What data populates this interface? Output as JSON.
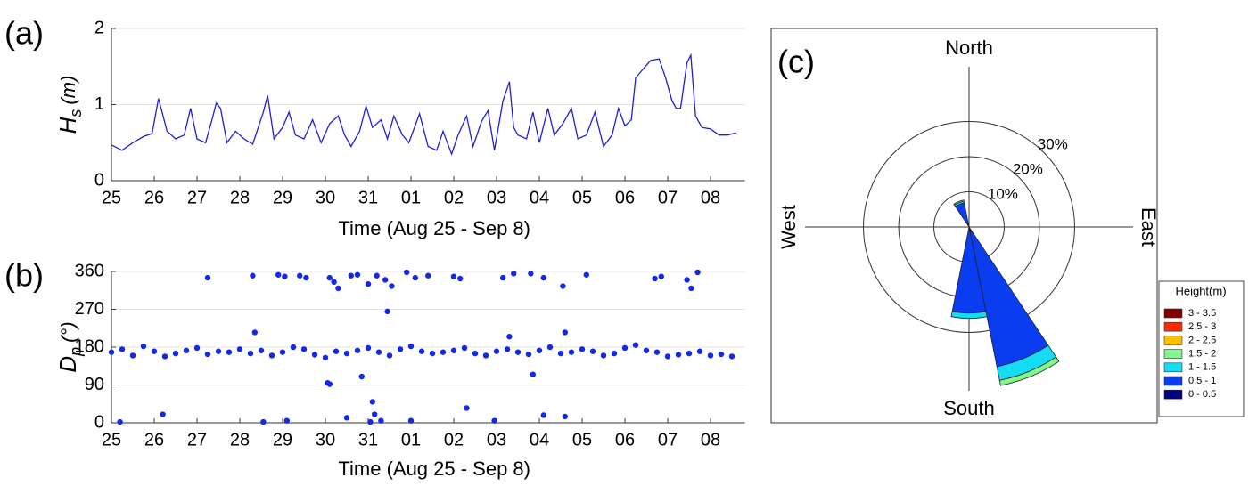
{
  "chart_data": [
    {
      "type": "line",
      "panel_label": "(a)",
      "xlabel": "Time (Aug 25 - Sep 8)",
      "ylabel": {
        "symbol": "H",
        "subscript": "s",
        "unit": "(m)"
      },
      "color": "#1f1fd6",
      "grid": true,
      "xlim": [
        0,
        14.8
      ],
      "ylim": [
        0,
        2
      ],
      "xticks": [
        {
          "value": 0,
          "label": "25"
        },
        {
          "value": 1,
          "label": "26"
        },
        {
          "value": 2,
          "label": "27"
        },
        {
          "value": 3,
          "label": "28"
        },
        {
          "value": 4,
          "label": "29"
        },
        {
          "value": 5,
          "label": "30"
        },
        {
          "value": 6,
          "label": "31"
        },
        {
          "value": 7,
          "label": "01"
        },
        {
          "value": 8,
          "label": "02"
        },
        {
          "value": 9,
          "label": "03"
        },
        {
          "value": 10,
          "label": "04"
        },
        {
          "value": 11,
          "label": "05"
        },
        {
          "value": 12,
          "label": "06"
        },
        {
          "value": 13,
          "label": "07"
        },
        {
          "value": 14,
          "label": "08"
        }
      ],
      "yticks": [
        0,
        1,
        2
      ],
      "x": [
        0,
        0.25,
        0.5,
        0.75,
        0.95,
        1.1,
        1.3,
        1.5,
        1.7,
        1.85,
        2.0,
        2.2,
        2.35,
        2.45,
        2.55,
        2.7,
        2.9,
        3.1,
        3.3,
        3.55,
        3.65,
        3.8,
        4.0,
        4.15,
        4.3,
        4.5,
        4.7,
        4.9,
        5.1,
        5.3,
        5.45,
        5.6,
        5.8,
        5.95,
        6.1,
        6.3,
        6.45,
        6.6,
        6.8,
        6.95,
        7.2,
        7.4,
        7.6,
        7.75,
        7.95,
        8.1,
        8.3,
        8.45,
        8.65,
        8.8,
        8.95,
        9.15,
        9.3,
        9.4,
        9.5,
        9.7,
        9.85,
        10.0,
        10.2,
        10.35,
        10.55,
        10.75,
        10.9,
        11.1,
        11.3,
        11.5,
        11.7,
        11.85,
        12.0,
        12.15,
        12.25,
        12.4,
        12.6,
        12.8,
        12.95,
        13.1,
        13.2,
        13.3,
        13.45,
        13.54,
        13.65,
        13.8,
        14.0,
        14.2,
        14.4,
        14.6
      ],
      "values": [
        0.47,
        0.4,
        0.5,
        0.58,
        0.62,
        1.08,
        0.65,
        0.55,
        0.6,
        0.95,
        0.55,
        0.5,
        0.8,
        1.02,
        0.95,
        0.5,
        0.65,
        0.55,
        0.48,
        0.9,
        1.12,
        0.55,
        0.7,
        0.9,
        0.6,
        0.55,
        0.8,
        0.5,
        0.75,
        0.85,
        0.6,
        0.45,
        0.65,
        0.98,
        0.7,
        0.8,
        0.55,
        0.85,
        0.6,
        0.5,
        0.88,
        0.45,
        0.4,
        0.65,
        0.35,
        0.6,
        0.85,
        0.45,
        0.78,
        0.92,
        0.4,
        1.05,
        1.3,
        0.7,
        0.6,
        0.55,
        0.9,
        0.5,
        0.95,
        0.6,
        0.75,
        0.95,
        0.55,
        0.6,
        0.9,
        0.45,
        0.6,
        0.95,
        0.72,
        0.8,
        1.35,
        1.45,
        1.58,
        1.6,
        1.35,
        1.05,
        0.95,
        0.95,
        1.55,
        1.65,
        0.85,
        0.7,
        0.68,
        0.6,
        0.6,
        0.63
      ]
    },
    {
      "type": "scatter",
      "panel_label": "(b)",
      "xlabel": "Time (Aug 25 - Sep 8)",
      "ylabel": {
        "symbol": "D",
        "subscript": "p",
        "unit": "(°)"
      },
      "color": "#1428e6",
      "grid": true,
      "xlim": [
        0,
        14.8
      ],
      "ylim": [
        0,
        360
      ],
      "xticks": [
        {
          "value": 0,
          "label": "25"
        },
        {
          "value": 1,
          "label": "26"
        },
        {
          "value": 2,
          "label": "27"
        },
        {
          "value": 3,
          "label": "28"
        },
        {
          "value": 4,
          "label": "29"
        },
        {
          "value": 5,
          "label": "30"
        },
        {
          "value": 6,
          "label": "31"
        },
        {
          "value": 7,
          "label": "01"
        },
        {
          "value": 8,
          "label": "02"
        },
        {
          "value": 9,
          "label": "03"
        },
        {
          "value": 10,
          "label": "04"
        },
        {
          "value": 11,
          "label": "05"
        },
        {
          "value": 12,
          "label": "06"
        },
        {
          "value": 13,
          "label": "07"
        },
        {
          "value": 14,
          "label": "08"
        }
      ],
      "yticks": [
        0,
        90,
        180,
        270,
        360
      ],
      "x": [
        0,
        0.25,
        0.5,
        0.75,
        1,
        1.25,
        1.5,
        1.75,
        2,
        2.25,
        2.5,
        2.75,
        3,
        3.25,
        3.5,
        3.75,
        4,
        4.25,
        4.5,
        4.75,
        5,
        5.25,
        5.5,
        5.75,
        6,
        6.25,
        6.5,
        6.75,
        7,
        7.25,
        7.5,
        7.75,
        8,
        8.25,
        8.5,
        8.75,
        9,
        9.25,
        9.5,
        9.75,
        10,
        10.25,
        10.5,
        10.75,
        11,
        11.25,
        11.5,
        11.75,
        12,
        12.25,
        12.5,
        12.75,
        13,
        13.25,
        13.5,
        13.75,
        14,
        14.25,
        14.5,
        2.25,
        3.3,
        3.9,
        4.05,
        4.4,
        4.55,
        5.1,
        5.2,
        5.3,
        5.6,
        5.75,
        6.0,
        6.2,
        6.4,
        6.55,
        6.9,
        7.1,
        7.4,
        8.0,
        8.15,
        9.15,
        9.4,
        9.8,
        10.1,
        10.55,
        11.1,
        12.7,
        12.85,
        13.45,
        13.55,
        13.7,
        0.2,
        1.2,
        3.55,
        4.1,
        5.5,
        6.05,
        6.3,
        7.0,
        8.3,
        8.95,
        10.1,
        10.6,
        5.05,
        5.1,
        3.35,
        5.85,
        6.1,
        6.15,
        6.45,
        9.85,
        10.6,
        9.3
      ],
      "values": [
        168,
        175,
        160,
        182,
        170,
        158,
        165,
        172,
        178,
        163,
        170,
        168,
        175,
        165,
        172,
        160,
        168,
        180,
        175,
        162,
        155,
        170,
        165,
        172,
        178,
        168,
        160,
        175,
        182,
        170,
        165,
        168,
        172,
        178,
        165,
        160,
        170,
        175,
        168,
        163,
        172,
        180,
        165,
        168,
        175,
        170,
        160,
        165,
        178,
        185,
        172,
        168,
        158,
        162,
        165,
        170,
        160,
        163,
        158,
        345,
        350,
        352,
        348,
        350,
        345,
        345,
        335,
        320,
        350,
        352,
        330,
        350,
        340,
        325,
        358,
        345,
        350,
        348,
        343,
        345,
        355,
        355,
        345,
        325,
        352,
        343,
        348,
        340,
        320,
        358,
        2,
        20,
        2,
        5,
        12,
        2,
        5,
        5,
        35,
        5,
        18,
        15,
        95,
        92,
        215,
        110,
        50,
        20,
        265,
        115,
        215,
        205
      ]
    },
    {
      "type": "windrose",
      "panel_label": "(c)",
      "compass": {
        "north": "North",
        "south": "South",
        "west": "West",
        "east": "East"
      },
      "rlim": [
        0,
        46.6
      ],
      "rticks": [
        {
          "value": 10,
          "label": "10%"
        },
        {
          "value": 20,
          "label": "20%"
        },
        {
          "value": 30,
          "label": "30%"
        }
      ],
      "directions": [
        157.5,
        180,
        337.5
      ],
      "legend_title": "Height(m)",
      "series": [
        {
          "name": "0 - 0.5",
          "color": "#000080",
          "values": [
            1.5,
            1,
            1
          ]
        },
        {
          "name": "0.5 - 1",
          "color": "#0a3cf0",
          "values": [
            39,
            23.5,
            6
          ]
        },
        {
          "name": "1 - 1.5",
          "color": "#14dcf5",
          "values": [
            4,
            1.5,
            0.5
          ]
        },
        {
          "name": "1.5 - 2",
          "color": "#82f58c",
          "values": [
            1.5,
            0,
            0.3
          ]
        },
        {
          "name": "2 - 2.5",
          "color": "#ffc000",
          "values": [
            0,
            0,
            0
          ]
        },
        {
          "name": "2.5 - 3",
          "color": "#ff2a00",
          "values": [
            0,
            0,
            0
          ]
        },
        {
          "name": "3 - 3.5",
          "color": "#800000",
          "values": [
            0,
            0,
            0
          ]
        }
      ]
    }
  ]
}
